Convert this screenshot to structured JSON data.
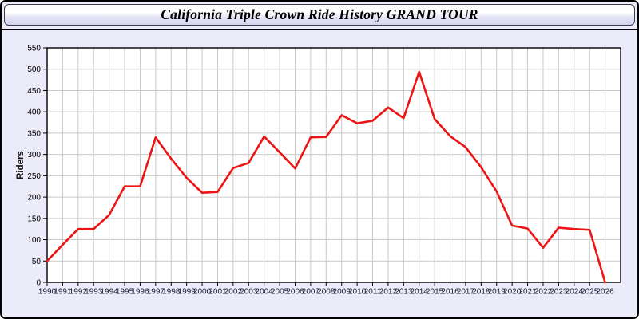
{
  "page": {
    "background_color": "#ebebfa",
    "border_color": "#000000"
  },
  "header": {
    "title": "California Triple Crown Ride History GRAND TOUR"
  },
  "chart_data": {
    "type": "line",
    "title": "California Triple Crown Ride History GRAND TOUR",
    "xlabel": "",
    "ylabel": "Riders",
    "x": [
      "1990",
      "1991",
      "1992",
      "1993",
      "1994",
      "1995",
      "1996",
      "1997",
      "1998",
      "1999",
      "2000",
      "2001",
      "2002",
      "2003",
      "2004",
      "2005",
      "2006",
      "2007",
      "2008",
      "2009",
      "2010",
      "2011",
      "2012",
      "2013",
      "2014",
      "2015",
      "2016",
      "2017",
      "2018",
      "2019",
      "2020",
      "2021",
      "2022",
      "2023",
      "2024",
      "2025",
      "2026"
    ],
    "series": [
      {
        "name": "Riders",
        "color": "#ec1414",
        "values": [
          50,
          88,
          125,
          125,
          158,
          225,
          225,
          340,
          290,
          245,
          210,
          212,
          268,
          280,
          342,
          305,
          267,
          340,
          341,
          392,
          373,
          379,
          410,
          385,
          494,
          383,
          343,
          317,
          270,
          213,
          133,
          126,
          81,
          128,
          125,
          123,
          0
        ]
      }
    ],
    "ylim": [
      0,
      550
    ],
    "ytick_step": 50,
    "grid": true,
    "gridline_color": "#c9c9c9",
    "plot_background": "#ffffff",
    "frame_color": "#000000",
    "tick_label_color": "#1c1c30",
    "legend": "none"
  }
}
